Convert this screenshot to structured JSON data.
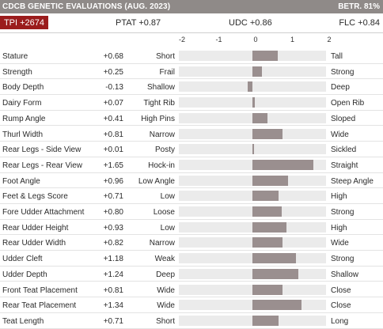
{
  "header": {
    "title": "CDCB GENETIC EVALUATIONS (AUG. 2023)",
    "reliability": "BETR. 81%"
  },
  "summary": {
    "tpi": "TPI +2674",
    "ptat": "PTAT +0.87",
    "udc": "UDC +0.86",
    "flc": "FLC +0.84"
  },
  "axis": {
    "ticks": [
      "-2",
      "-1",
      "0",
      "1",
      "2"
    ]
  },
  "colors": {
    "header_bg": "#8f8a88",
    "tpi_bg": "#9b1c1c",
    "bar": "#9a8f8f",
    "track": "#ebebeb"
  },
  "chart_data": {
    "type": "bar",
    "orientation": "horizontal",
    "xlim": [
      -2,
      2
    ],
    "categories": [
      "Stature",
      "Strength",
      "Body Depth",
      "Dairy Form",
      "Rump Angle",
      "Thurl Width",
      "Rear Legs - Side View",
      "Rear Legs - Rear View",
      "Foot Angle",
      "Feet & Legs Score",
      "Fore Udder Attachment",
      "Rear Udder Height",
      "Rear Udder Width",
      "Udder Cleft",
      "Udder Depth",
      "Front Teat Placement",
      "Rear Teat Placement",
      "Teat Length"
    ],
    "values": [
      0.68,
      0.25,
      -0.13,
      0.07,
      0.41,
      0.81,
      0.01,
      1.65,
      0.96,
      0.71,
      0.8,
      0.93,
      0.82,
      1.18,
      1.24,
      0.81,
      1.34,
      0.71
    ]
  },
  "traits": [
    {
      "name": "Stature",
      "value": "+0.68",
      "low": "Short",
      "high": "Tall"
    },
    {
      "name": "Strength",
      "value": "+0.25",
      "low": "Frail",
      "high": "Strong"
    },
    {
      "name": "Body Depth",
      "value": "-0.13",
      "low": "Shallow",
      "high": "Deep"
    },
    {
      "name": "Dairy Form",
      "value": "+0.07",
      "low": "Tight Rib",
      "high": "Open Rib"
    },
    {
      "name": "Rump Angle",
      "value": "+0.41",
      "low": "High Pins",
      "high": "Sloped"
    },
    {
      "name": "Thurl Width",
      "value": "+0.81",
      "low": "Narrow",
      "high": "Wide"
    },
    {
      "name": "Rear Legs - Side View",
      "value": "+0.01",
      "low": "Posty",
      "high": "Sickled"
    },
    {
      "name": "Rear Legs - Rear View",
      "value": "+1.65",
      "low": "Hock-in",
      "high": "Straight"
    },
    {
      "name": "Foot Angle",
      "value": "+0.96",
      "low": "Low Angle",
      "high": "Steep Angle"
    },
    {
      "name": "Feet & Legs Score",
      "value": "+0.71",
      "low": "Low",
      "high": "High"
    },
    {
      "name": "Fore Udder Attachment",
      "value": "+0.80",
      "low": "Loose",
      "high": "Strong"
    },
    {
      "name": "Rear Udder Height",
      "value": "+0.93",
      "low": "Low",
      "high": "High"
    },
    {
      "name": "Rear Udder Width",
      "value": "+0.82",
      "low": "Narrow",
      "high": "Wide"
    },
    {
      "name": "Udder Cleft",
      "value": "+1.18",
      "low": "Weak",
      "high": "Strong"
    },
    {
      "name": "Udder Depth",
      "value": "+1.24",
      "low": "Deep",
      "high": "Shallow"
    },
    {
      "name": "Front Teat Placement",
      "value": "+0.81",
      "low": "Wide",
      "high": "Close"
    },
    {
      "name": "Rear Teat Placement",
      "value": "+1.34",
      "low": "Wide",
      "high": "Close"
    },
    {
      "name": "Teat Length",
      "value": "+0.71",
      "low": "Short",
      "high": "Long"
    }
  ]
}
